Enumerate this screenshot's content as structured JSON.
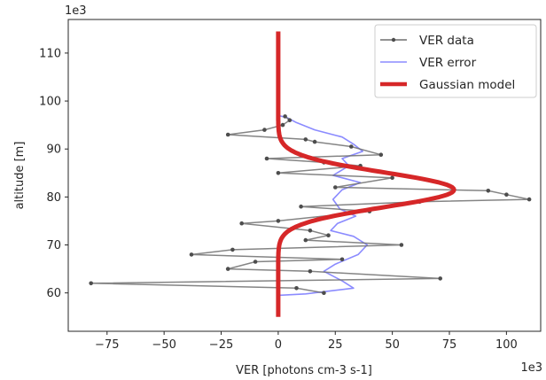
{
  "chart_data": {
    "type": "line",
    "xlabel": "VER [photons cm-3 s-1]",
    "ylabel": "altitude [m]",
    "x_scale_label": "1e3",
    "y_scale_label": "1e3",
    "xlim": [
      -92,
      115
    ],
    "ylim": [
      52,
      117
    ],
    "x_ticks": [
      -75,
      -50,
      -25,
      0,
      25,
      50,
      75,
      100
    ],
    "x_tick_labels": [
      "−75",
      "−50",
      "−25",
      "0",
      "25",
      "50",
      "75",
      "100"
    ],
    "y_ticks": [
      60,
      70,
      80,
      90,
      100,
      110
    ],
    "y_tick_labels": [
      "60",
      "70",
      "80",
      "90",
      "100",
      "110"
    ],
    "legend_position": "top-right",
    "series": [
      {
        "name": "VER data",
        "color": "#6e6e6e",
        "points": [
          [
            20,
            60
          ],
          [
            8,
            61
          ],
          [
            -82,
            62
          ],
          [
            71,
            63
          ],
          [
            14,
            64.5
          ],
          [
            -22,
            65
          ],
          [
            -10,
            66.5
          ],
          [
            28,
            67
          ],
          [
            -38,
            68
          ],
          [
            -20,
            69
          ],
          [
            54,
            70
          ],
          [
            12,
            71
          ],
          [
            22,
            72
          ],
          [
            14,
            73
          ],
          [
            -16,
            74.5
          ],
          [
            0,
            75
          ],
          [
            40,
            77
          ],
          [
            10,
            78
          ],
          [
            62,
            79
          ],
          [
            110,
            79.5
          ],
          [
            100,
            80.5
          ],
          [
            92,
            81.3
          ],
          [
            25,
            82
          ],
          [
            50,
            84
          ],
          [
            0,
            85
          ],
          [
            36,
            86.5
          ],
          [
            20,
            87.2
          ],
          [
            -5,
            88
          ],
          [
            45,
            88.8
          ],
          [
            32,
            90.5
          ],
          [
            16,
            91.5
          ],
          [
            12,
            92
          ],
          [
            -22,
            93
          ],
          [
            -6,
            94
          ],
          [
            2,
            95
          ],
          [
            5,
            96
          ],
          [
            3,
            96.8
          ]
        ]
      },
      {
        "name": "VER error",
        "color": "#8b8bff",
        "points": [
          [
            0,
            59.5
          ],
          [
            12,
            59.8
          ],
          [
            33,
            61
          ],
          [
            28,
            62.5
          ],
          [
            20,
            64.5
          ],
          [
            25,
            66
          ],
          [
            35,
            68
          ],
          [
            39,
            70
          ],
          [
            33,
            71.8
          ],
          [
            23,
            73
          ],
          [
            26,
            74.5
          ],
          [
            34,
            76
          ],
          [
            27,
            77.5
          ],
          [
            24,
            79.5
          ],
          [
            28,
            81.5
          ],
          [
            36,
            83
          ],
          [
            24,
            84.5
          ],
          [
            31,
            86.5
          ],
          [
            28,
            88
          ],
          [
            37,
            89.5
          ],
          [
            33,
            91
          ],
          [
            28,
            92.5
          ],
          [
            16,
            94
          ],
          [
            8,
            95.5
          ],
          [
            4,
            96.5
          ],
          [
            0,
            97
          ]
        ]
      },
      {
        "name": "Gaussian model",
        "color": "#d62728",
        "amplitude": 77,
        "center": 81.5,
        "sigma": 3.6,
        "range": [
          55,
          114.5
        ]
      }
    ]
  }
}
